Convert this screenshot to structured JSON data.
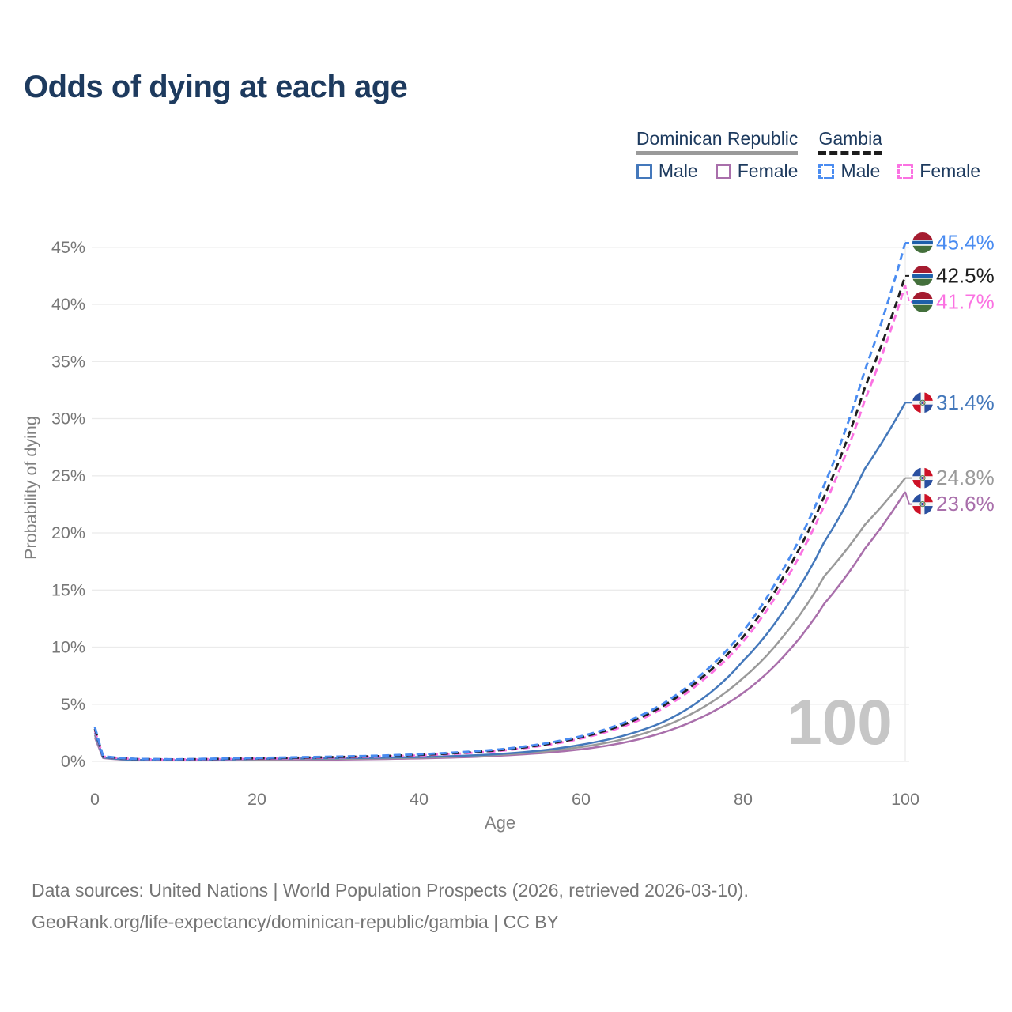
{
  "title": "Odds of dying at each age",
  "watermark": "100",
  "legend": {
    "groups": [
      {
        "country": "Dominican Republic",
        "line_style": "solid",
        "underline_color": "#9a9a9a",
        "items": [
          {
            "label": "Male",
            "color": "#4478bb"
          },
          {
            "label": "Female",
            "color": "#a96fab"
          }
        ]
      },
      {
        "country": "Gambia",
        "line_style": "dashed",
        "underline_color": "#1c1c1c",
        "items": [
          {
            "label": "Male",
            "color": "#4a8cf1"
          },
          {
            "label": "Female",
            "color": "#fb72e2"
          }
        ]
      }
    ]
  },
  "y_axis": {
    "label": "Probability of dying",
    "unit": "%",
    "ticks": [
      0,
      5,
      10,
      15,
      20,
      25,
      30,
      35,
      40,
      45
    ]
  },
  "x_axis": {
    "label": "Age",
    "ticks": [
      0,
      20,
      40,
      60,
      80,
      100
    ]
  },
  "footer": {
    "line1": "Data sources: United Nations | World Population Prospects (2026, retrieved 2026-03-10).",
    "line2": "GeoRank.org/life-expectancy/dominican-republic/gambia | CC BY"
  },
  "chart_data": {
    "type": "line",
    "title": "Odds of dying at each age",
    "xlabel": "Age",
    "ylabel": "Probability of dying",
    "xlim": [
      0,
      100
    ],
    "ylim_pct": [
      0,
      45
    ],
    "grid": "horizontal",
    "legend_position": "top-right",
    "x": [
      0,
      1,
      5,
      10,
      15,
      20,
      25,
      30,
      35,
      40,
      45,
      50,
      55,
      60,
      65,
      70,
      75,
      80,
      85,
      90,
      95,
      100
    ],
    "series": [
      {
        "name": "Dominican Republic Female",
        "country": "Dominican Republic",
        "sex": "Female",
        "color": "#a96fab",
        "dash": "solid",
        "flag": "dominican-republic",
        "end_label": "23.6%",
        "end_value": 23.6,
        "values_pct": [
          2.1,
          0.3,
          0.1,
          0.08,
          0.1,
          0.12,
          0.14,
          0.16,
          0.2,
          0.26,
          0.35,
          0.5,
          0.72,
          1.05,
          1.6,
          2.5,
          3.9,
          6.0,
          9.2,
          13.8,
          18.6,
          23.6
        ]
      },
      {
        "name": "Dominican Republic Both sexes",
        "country": "Dominican Republic",
        "sex": "Both",
        "color": "#9a9a9a",
        "dash": "solid",
        "flag": "dominican-republic",
        "end_label": "24.8%",
        "end_value": 24.8,
        "values_pct": [
          2.3,
          0.33,
          0.11,
          0.09,
          0.12,
          0.17,
          0.2,
          0.22,
          0.26,
          0.32,
          0.42,
          0.58,
          0.84,
          1.25,
          1.9,
          3.0,
          4.7,
          7.3,
          11.0,
          16.2,
          20.7,
          24.8
        ]
      },
      {
        "name": "Dominican Republic Male",
        "country": "Dominican Republic",
        "sex": "Male",
        "color": "#4478bb",
        "dash": "solid",
        "flag": "dominican-republic",
        "end_label": "31.4%",
        "end_value": 31.4,
        "values_pct": [
          2.5,
          0.35,
          0.12,
          0.1,
          0.15,
          0.22,
          0.25,
          0.28,
          0.32,
          0.38,
          0.48,
          0.65,
          0.95,
          1.45,
          2.2,
          3.4,
          5.5,
          8.8,
          13.2,
          19.2,
          25.6,
          31.4
        ]
      },
      {
        "name": "Gambia Female",
        "country": "Gambia",
        "sex": "Female",
        "color": "#fb72e2",
        "dash": "dashed",
        "flag": "gambia",
        "end_label": "41.7%",
        "end_value": 41.7,
        "values_pct": [
          2.7,
          0.42,
          0.2,
          0.16,
          0.2,
          0.24,
          0.28,
          0.34,
          0.42,
          0.52,
          0.68,
          0.92,
          1.35,
          2.0,
          3.0,
          4.6,
          7.1,
          10.5,
          15.6,
          22.4,
          31.6,
          41.7
        ]
      },
      {
        "name": "Gambia Both sexes",
        "country": "Gambia",
        "sex": "Both",
        "color": "#1f1f1f",
        "dash": "dashed",
        "flag": "gambia",
        "end_label": "42.5%",
        "end_value": 42.5,
        "values_pct": [
          2.85,
          0.43,
          0.21,
          0.17,
          0.22,
          0.27,
          0.32,
          0.38,
          0.46,
          0.57,
          0.74,
          0.98,
          1.42,
          2.1,
          3.15,
          4.8,
          7.4,
          10.9,
          16.2,
          23.2,
          32.7,
          42.5
        ]
      },
      {
        "name": "Gambia Male",
        "country": "Gambia",
        "sex": "Male",
        "color": "#4a8cf1",
        "dash": "dashed",
        "flag": "gambia",
        "end_label": "45.4%",
        "end_value": 45.4,
        "values_pct": [
          3.0,
          0.45,
          0.22,
          0.18,
          0.24,
          0.3,
          0.36,
          0.42,
          0.5,
          0.62,
          0.8,
          1.05,
          1.5,
          2.2,
          3.3,
          5.0,
          7.7,
          11.4,
          16.9,
          24.2,
          34.2,
          45.4
        ]
      }
    ],
    "flag_colors": {
      "gambia": {
        "red": "#a51c30",
        "blue": "#1e5fa9",
        "green": "#44703c",
        "white": "#ffffff"
      },
      "dominican_republic": {
        "blue": "#2a4fa0",
        "red": "#cd1126",
        "white": "#f5f5f5",
        "emblem_green": "#4a7a42"
      }
    },
    "colors": {
      "grid": "#ebebeb",
      "axis_text": "#777777",
      "watermark": "#c6c6c6",
      "title": "#1d3a5e"
    }
  }
}
